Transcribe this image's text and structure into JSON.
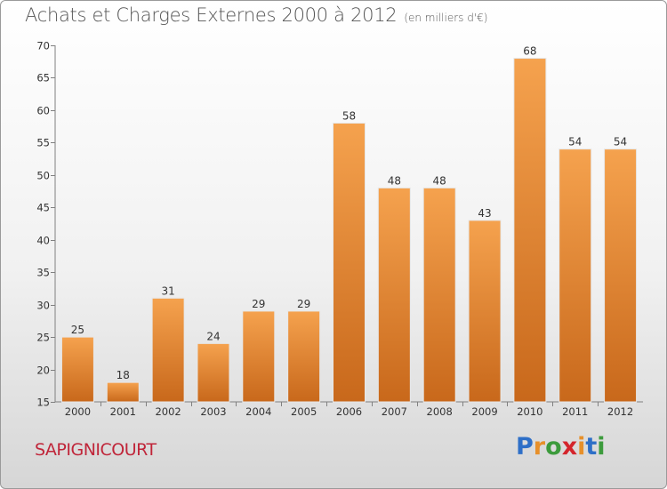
{
  "header": {
    "title": "Achats et Charges Externes 2000 à 2012",
    "subtitle": "(en milliers d'€)"
  },
  "footer": {
    "commune": "SAPIGNICOURT",
    "logo": {
      "letters": [
        "P",
        "r",
        "o",
        "x",
        "i",
        "t",
        "i"
      ],
      "colors": [
        "#2e6fc7",
        "#e7902a",
        "#3c9b3c",
        "#d4252c",
        "#e7902a",
        "#2e6fc7",
        "#3c9b3c"
      ]
    }
  },
  "chart_data": {
    "type": "bar",
    "categories": [
      "2000",
      "2001",
      "2002",
      "2003",
      "2004",
      "2005",
      "2006",
      "2007",
      "2008",
      "2009",
      "2010",
      "2011",
      "2012"
    ],
    "values": [
      25,
      18,
      31,
      24,
      29,
      29,
      58,
      48,
      48,
      43,
      68,
      54,
      54
    ],
    "data_labels": [
      "25",
      "18",
      "31",
      "24",
      "29",
      "29",
      "58",
      "48",
      "48",
      "43",
      "68",
      "54",
      "54"
    ],
    "ylim": [
      15,
      70
    ],
    "yticks": [
      15,
      20,
      25,
      30,
      35,
      40,
      45,
      50,
      55,
      60,
      65,
      70
    ],
    "grid": false,
    "colors": {
      "bar_top": "#f5a24e",
      "bar_bottom": "#c8681b",
      "axis": "#808080"
    }
  }
}
